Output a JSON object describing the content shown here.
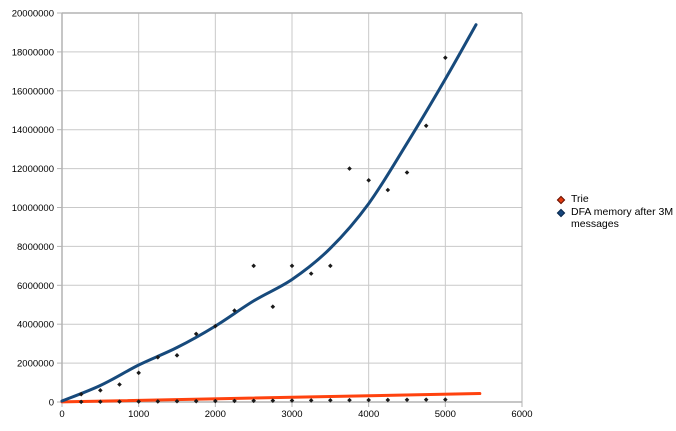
{
  "chart_data": {
    "type": "scatter",
    "title": "",
    "xlabel": "",
    "ylabel": "",
    "xlim": [
      0,
      6000
    ],
    "ylim": [
      0,
      20000000
    ],
    "x_ticks": [
      0,
      1000,
      2000,
      3000,
      4000,
      5000,
      6000
    ],
    "y_ticks": [
      0,
      2000000,
      4000000,
      6000000,
      8000000,
      10000000,
      12000000,
      14000000,
      16000000,
      18000000,
      20000000
    ],
    "grid": true,
    "legend_position": "right",
    "x": [
      250,
      500,
      750,
      1000,
      1250,
      1500,
      1750,
      2000,
      2250,
      2500,
      2750,
      3000,
      3250,
      3500,
      3750,
      4000,
      4250,
      4500,
      4750,
      5000
    ],
    "series": [
      {
        "name": "Trie",
        "line_color": "#ff420e",
        "marker_color": "#b1290c",
        "values": [
          6000,
          13000,
          19000,
          25000,
          31000,
          38000,
          44000,
          50000,
          56000,
          63000,
          69000,
          75000,
          81000,
          88000,
          94000,
          100000,
          106000,
          113000,
          119000,
          125000
        ],
        "trend": [
          [
            0,
            5000
          ],
          [
            5450,
            435000
          ]
        ]
      },
      {
        "name": "DFA memory after 3M messages",
        "line_color": "#174a7c",
        "marker_color": "#123a6d",
        "values": [
          400000,
          600000,
          900000,
          1500000,
          2300000,
          2400000,
          3500000,
          3900000,
          4700000,
          7000000,
          4900000,
          7000000,
          6600000,
          7000000,
          12000000,
          11400000,
          10900000,
          11800000,
          14200000,
          17700000
        ],
        "trend": [
          [
            0,
            50000
          ],
          [
            500,
            850000
          ],
          [
            1000,
            1900000
          ],
          [
            1500,
            2800000
          ],
          [
            2000,
            3900000
          ],
          [
            2500,
            5200000
          ],
          [
            3000,
            6300000
          ],
          [
            3500,
            7900000
          ],
          [
            4000,
            10200000
          ],
          [
            4500,
            13300000
          ],
          [
            5000,
            16600000
          ],
          [
            5400,
            19400000
          ]
        ]
      }
    ],
    "point_color": "#1a1a1a",
    "colors": {
      "background": "#ffffff",
      "grid": "#c9c9c9",
      "axis": "#b3b3b3",
      "tick_label": "#000000"
    }
  }
}
